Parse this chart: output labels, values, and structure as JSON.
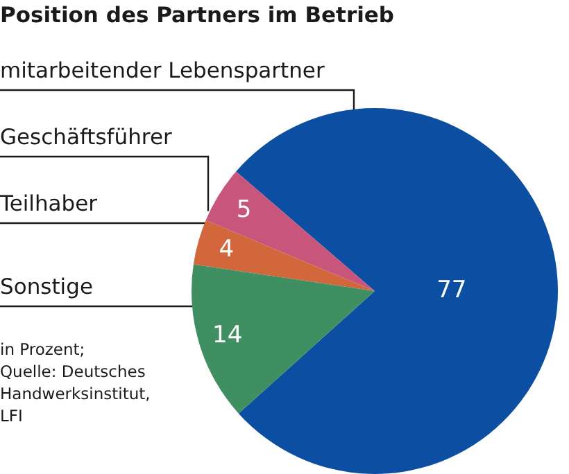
{
  "chart_data": {
    "type": "pie",
    "title": "Position des Partners im Betrieb",
    "categories": [
      "mitarbeitender Lebenspartner",
      "Geschäftsführer",
      "Teilhaber",
      "Sonstige"
    ],
    "values": [
      77,
      5,
      4,
      14
    ],
    "colors": [
      "#0b4ea2",
      "#c8567c",
      "#d2673b",
      "#3f8f63"
    ],
    "data_labels": true,
    "legend": false,
    "annotations": [
      "in Prozent;",
      "Quelle: Deutsches Handwerksinstitut, LFI"
    ]
  }
}
